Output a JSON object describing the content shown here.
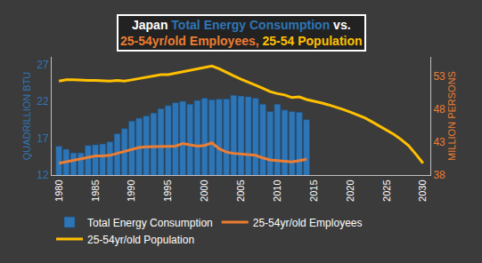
{
  "chart_data": {
    "type": "bar",
    "title": [
      "Japan",
      "Total Energy Consumption",
      "vs.",
      "25-54yr/old Employees,",
      "25-54 Population"
    ],
    "y_label": "QUADRILLION BTU",
    "y2_label": "MILLION PERSONS",
    "xlim": [
      1979,
      2031
    ],
    "xticks": [
      1980,
      1985,
      1990,
      1995,
      2000,
      2005,
      2010,
      2015,
      2020,
      2025,
      2030
    ],
    "ylim": [
      12,
      28
    ],
    "yticks": [
      12,
      17,
      22,
      27
    ],
    "y2lim": [
      38,
      56
    ],
    "y2ticks": [
      38,
      43,
      48,
      53
    ],
    "grid": false,
    "legend": "bottom",
    "series": [
      {
        "name": "Total Energy Consumption",
        "type": "bar",
        "color": "#2e75b6",
        "x": [
          1980,
          1981,
          1982,
          1983,
          1984,
          1985,
          1986,
          1987,
          1988,
          1989,
          1990,
          1991,
          1992,
          1993,
          1994,
          1995,
          1996,
          1997,
          1998,
          1999,
          2000,
          2001,
          2002,
          2003,
          2004,
          2005,
          2006,
          2007,
          2008,
          2009,
          2010,
          2011,
          2012,
          2013,
          2014
        ],
        "values": [
          15.9,
          15.5,
          15.0,
          15.0,
          16.0,
          16.1,
          16.2,
          16.5,
          17.6,
          18.3,
          19.3,
          19.7,
          20.0,
          20.4,
          21.0,
          21.4,
          21.8,
          22.0,
          21.6,
          22.1,
          22.4,
          22.2,
          22.3,
          22.3,
          22.8,
          22.7,
          22.6,
          22.4,
          21.6,
          20.6,
          21.6,
          20.8,
          20.6,
          20.5,
          19.5
        ]
      },
      {
        "name": "25-54yr/old Employees",
        "type": "line",
        "axis": "y2",
        "color": "#ed7d31",
        "x": [
          1980,
          1981,
          1982,
          1983,
          1984,
          1985,
          1986,
          1987,
          1988,
          1989,
          1990,
          1991,
          1992,
          1993,
          1994,
          1995,
          1996,
          1997,
          1998,
          1999,
          2000,
          2001,
          2002,
          2003,
          2004,
          2005,
          2006,
          2007,
          2008,
          2009,
          2010,
          2011,
          2012,
          2013,
          2014
        ],
        "values": [
          39.8,
          40.0,
          40.2,
          40.5,
          40.7,
          40.9,
          40.9,
          41.0,
          41.3,
          41.6,
          41.9,
          42.2,
          42.3,
          42.3,
          42.3,
          42.3,
          42.4,
          42.8,
          42.6,
          42.4,
          42.5,
          42.9,
          42.0,
          41.5,
          41.3,
          41.2,
          41.2,
          41.0,
          40.6,
          40.3,
          40.2,
          40.1,
          40.0,
          40.2,
          40.4
        ]
      },
      {
        "name": "25-54yr/old Population",
        "type": "line",
        "axis": "y2",
        "color": "#ffc000",
        "x": [
          1980,
          1981,
          1982,
          1983,
          1984,
          1985,
          1986,
          1987,
          1988,
          1989,
          1990,
          1991,
          1992,
          1993,
          1994,
          1995,
          1996,
          1997,
          1998,
          1999,
          2000,
          2001,
          2002,
          2003,
          2004,
          2005,
          2006,
          2007,
          2008,
          2009,
          2010,
          2011,
          2012,
          2013,
          2014,
          2015,
          2016,
          2017,
          2018,
          2019,
          2020,
          2021,
          2022,
          2023,
          2024,
          2025,
          2026,
          2027,
          2028,
          2029,
          2030
        ],
        "values": [
          52.3,
          52.5,
          52.5,
          52.4,
          52.4,
          52.4,
          52.3,
          52.3,
          52.4,
          52.3,
          52.5,
          52.7,
          52.9,
          53.1,
          53.3,
          53.3,
          53.5,
          53.8,
          54.0,
          54.2,
          54.3,
          54.6,
          54.2,
          53.6,
          53.1,
          52.6,
          52.2,
          51.7,
          51.2,
          50.7,
          50.4,
          50.2,
          49.8,
          49.9,
          49.5,
          49.3,
          49.0,
          48.7,
          48.4,
          48.0,
          47.6,
          47.2,
          46.7,
          46.1,
          45.5,
          44.9,
          44.2,
          43.4,
          42.5,
          41.2,
          39.8
        ]
      }
    ]
  }
}
